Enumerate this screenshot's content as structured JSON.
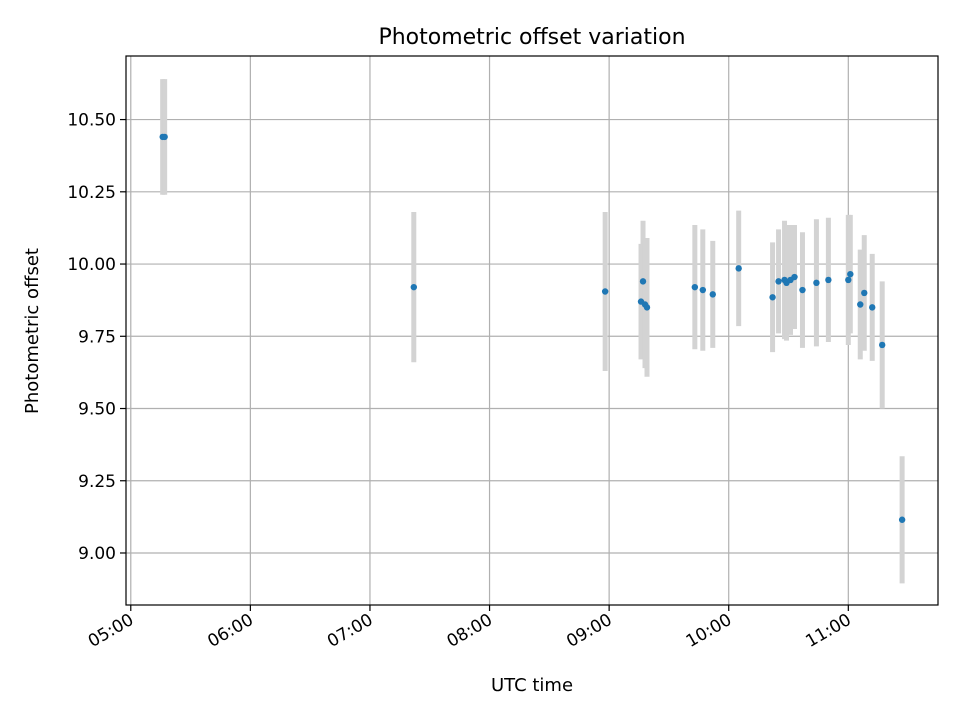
{
  "chart_data": {
    "type": "scatter",
    "title": "Photometric offset variation",
    "xlabel": "UTC time",
    "ylabel": "Photometric offset",
    "x_tick_labels": [
      "05:00",
      "06:00",
      "07:00",
      "08:00",
      "09:00",
      "10:00",
      "11:00"
    ],
    "x_tick_hours": [
      5,
      6,
      7,
      8,
      9,
      10,
      11
    ],
    "y_tick_labels": [
      "9.00",
      "9.25",
      "9.50",
      "9.75",
      "10.00",
      "10.25",
      "10.50"
    ],
    "y_tick_values": [
      9.0,
      9.25,
      9.5,
      9.75,
      10.0,
      10.25,
      10.5
    ],
    "xlim_hours": [
      4.96,
      11.75
    ],
    "ylim": [
      8.82,
      10.72
    ],
    "grid": true,
    "colors": {
      "point": "#1f77b4",
      "errorbar": "#d3d3d3",
      "grid": "#b0b0b0"
    },
    "points": [
      {
        "time": "05:16",
        "y": 10.44,
        "yerr": 0.2
      },
      {
        "time": "05:17",
        "y": 10.44,
        "yerr": 0.2
      },
      {
        "time": "07:22",
        "y": 9.92,
        "yerr": 0.26
      },
      {
        "time": "08:58",
        "y": 9.905,
        "yerr": 0.275
      },
      {
        "time": "09:16",
        "y": 9.87,
        "yerr": 0.2
      },
      {
        "time": "09:17",
        "y": 9.94,
        "yerr": 0.21
      },
      {
        "time": "09:18",
        "y": 9.86,
        "yerr": 0.22
      },
      {
        "time": "09:19",
        "y": 9.85,
        "yerr": 0.24
      },
      {
        "time": "09:43",
        "y": 9.92,
        "yerr": 0.215
      },
      {
        "time": "09:47",
        "y": 9.91,
        "yerr": 0.21
      },
      {
        "time": "09:52",
        "y": 9.895,
        "yerr": 0.185
      },
      {
        "time": "10:05",
        "y": 9.985,
        "yerr": 0.2
      },
      {
        "time": "10:22",
        "y": 9.885,
        "yerr": 0.19
      },
      {
        "time": "10:25",
        "y": 9.94,
        "yerr": 0.18
      },
      {
        "time": "10:28",
        "y": 9.945,
        "yerr": 0.205
      },
      {
        "time": "10:29",
        "y": 9.935,
        "yerr": 0.2
      },
      {
        "time": "10:31",
        "y": 9.945,
        "yerr": 0.19
      },
      {
        "time": "10:33",
        "y": 9.955,
        "yerr": 0.18
      },
      {
        "time": "10:37",
        "y": 9.91,
        "yerr": 0.2
      },
      {
        "time": "10:44",
        "y": 9.935,
        "yerr": 0.22
      },
      {
        "time": "10:50",
        "y": 9.945,
        "yerr": 0.215
      },
      {
        "time": "11:00",
        "y": 9.945,
        "yerr": 0.225
      },
      {
        "time": "11:01",
        "y": 9.965,
        "yerr": 0.205
      },
      {
        "time": "11:06",
        "y": 9.86,
        "yerr": 0.19
      },
      {
        "time": "11:08",
        "y": 9.9,
        "yerr": 0.2
      },
      {
        "time": "11:12",
        "y": 9.85,
        "yerr": 0.185
      },
      {
        "time": "11:17",
        "y": 9.72,
        "yerr": 0.22
      },
      {
        "time": "11:27",
        "y": 9.115,
        "yerr": 0.22
      }
    ]
  }
}
